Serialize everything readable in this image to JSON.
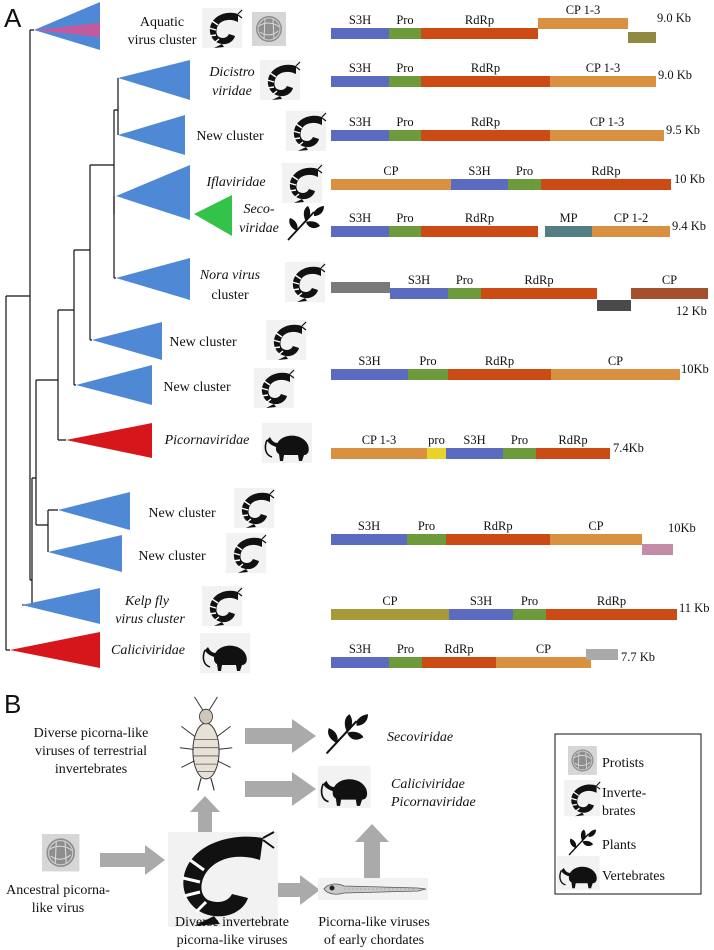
{
  "panels": {
    "a": "A",
    "b": "B"
  },
  "colors": {
    "S3H": "#5b6bbf",
    "Pro": "#6d9a3a",
    "RdRp": "#cc4a14",
    "CP": "#d9903f",
    "MP": "#557d86",
    "pro": "#e9d329",
    "grey": "#7a7a7a",
    "darkgrey": "#4a4a4a",
    "brown": "#a4502e",
    "olive": "#8f8a3f",
    "mauve": "#c38ca6",
    "lightgrey": "#a9a9a9",
    "olivecp": "#a69a3a",
    "invert": "#4f89d6",
    "vert": "#d6161a",
    "plant": "#33c24a",
    "protist": "#c45a9e"
  },
  "clades": [
    {
      "line1": "Aquatic",
      "line2": "virus cluster",
      "italic": false,
      "host": "invertebrate",
      "extra_host": "protist"
    },
    {
      "line1": "Dicistro",
      "line2": "viridae",
      "italic": true,
      "host": "invertebrate"
    },
    {
      "line1": "New cluster",
      "line2": "",
      "italic": false,
      "host": "invertebrate"
    },
    {
      "line1": "Iflaviridae",
      "line2": "",
      "italic": true,
      "host": "invertebrate"
    },
    {
      "line1": "Seco-",
      "line2": "viridae",
      "italic": true,
      "host": "plant"
    },
    {
      "line1": "Nora virus",
      "line2": "cluster",
      "italic": true,
      "host": "invertebrate"
    },
    {
      "line1": "New cluster",
      "line2": "",
      "italic": false,
      "host": "invertebrate"
    },
    {
      "line1": "New cluster",
      "line2": "",
      "italic": false,
      "host": "invertebrate"
    },
    {
      "line1": "Picornaviridae",
      "line2": "",
      "italic": true,
      "host": "vertebrate"
    },
    {
      "line1": "New cluster",
      "line2": "",
      "italic": false,
      "host": "invertebrate"
    },
    {
      "line1": "New cluster",
      "line2": "",
      "italic": false,
      "host": "invertebrate"
    },
    {
      "line1": "Kelp fly",
      "line2": "virus cluster",
      "italic": true,
      "host": "invertebrate"
    },
    {
      "line1": "Caliciviridae",
      "line2": "",
      "italic": true,
      "host": "vertebrate"
    }
  ],
  "genomes": [
    {
      "size": "9.0 Kb",
      "segments": [
        {
          "label": "S3H",
          "color": "S3H"
        },
        {
          "label": "Pro",
          "color": "Pro"
        },
        {
          "label": "RdRp",
          "color": "RdRp"
        },
        {
          "label": "CP 1-3",
          "color": "CP"
        },
        {
          "label": "",
          "color": "olive"
        }
      ]
    },
    {
      "size": "9.0 Kb",
      "segments": [
        {
          "label": "S3H",
          "color": "S3H"
        },
        {
          "label": "Pro",
          "color": "Pro"
        },
        {
          "label": "RdRp",
          "color": "RdRp"
        },
        {
          "label": "CP 1-3",
          "color": "CP"
        }
      ]
    },
    {
      "size": "9.5 Kb",
      "segments": [
        {
          "label": "S3H",
          "color": "S3H"
        },
        {
          "label": "Pro",
          "color": "Pro"
        },
        {
          "label": "RdRp",
          "color": "RdRp"
        },
        {
          "label": "CP 1-3",
          "color": "CP"
        }
      ]
    },
    {
      "size": "10 Kb",
      "segments": [
        {
          "label": "CP",
          "color": "CP"
        },
        {
          "label": "S3H",
          "color": "S3H"
        },
        {
          "label": "Pro",
          "color": "Pro"
        },
        {
          "label": "RdRp",
          "color": "RdRp"
        }
      ]
    },
    {
      "size": "9.4 Kb",
      "segments": [
        {
          "label": "S3H",
          "color": "S3H"
        },
        {
          "label": "Pro",
          "color": "Pro"
        },
        {
          "label": "RdRp",
          "color": "RdRp"
        },
        {
          "label": "MP",
          "color": "MP"
        },
        {
          "label": "CP 1-2",
          "color": "CP"
        }
      ]
    },
    {
      "size": "12 Kb",
      "segments": [
        {
          "label": "",
          "color": "grey"
        },
        {
          "label": "S3H",
          "color": "S3H"
        },
        {
          "label": "Pro",
          "color": "Pro"
        },
        {
          "label": "RdRp",
          "color": "RdRp"
        },
        {
          "label": "",
          "color": "darkgrey"
        },
        {
          "label": "CP",
          "color": "brown"
        }
      ]
    },
    {
      "size": "10Kb",
      "segments": [
        {
          "label": "S3H",
          "color": "S3H"
        },
        {
          "label": "Pro",
          "color": "Pro"
        },
        {
          "label": "RdRp",
          "color": "RdRp"
        },
        {
          "label": "CP",
          "color": "CP"
        }
      ]
    },
    {
      "size": "7.4Kb",
      "segments": [
        {
          "label": "CP 1-3",
          "color": "CP"
        },
        {
          "label": "pro",
          "color": "pro"
        },
        {
          "label": "S3H",
          "color": "S3H"
        },
        {
          "label": "Pro",
          "color": "Pro"
        },
        {
          "label": "RdRp",
          "color": "RdRp"
        }
      ]
    },
    {
      "size": "10Kb",
      "segments": [
        {
          "label": "S3H",
          "color": "S3H"
        },
        {
          "label": "Pro",
          "color": "Pro"
        },
        {
          "label": "RdRp",
          "color": "RdRp"
        },
        {
          "label": "CP",
          "color": "CP"
        },
        {
          "label": "",
          "color": "mauve"
        }
      ]
    },
    {
      "size": "11 Kb",
      "segments": [
        {
          "label": "CP",
          "color": "olivecp"
        },
        {
          "label": "S3H",
          "color": "S3H"
        },
        {
          "label": "Pro",
          "color": "Pro"
        },
        {
          "label": "RdRp",
          "color": "RdRp"
        }
      ]
    },
    {
      "size": "7.7 Kb",
      "segments": [
        {
          "label": "S3H",
          "color": "S3H"
        },
        {
          "label": "Pro",
          "color": "Pro"
        },
        {
          "label": "RdRp",
          "color": "RdRp"
        },
        {
          "label": "CP",
          "color": "CP"
        },
        {
          "label": "",
          "color": "lightgrey"
        }
      ]
    }
  ],
  "scheme": {
    "terrestrial": [
      "Diverse picorna-like",
      "viruses of terrestrial",
      "invertebrates"
    ],
    "ancestral": [
      "Ancestral picorna-",
      "like virus"
    ],
    "diverse_invert": [
      "Diverse invertebrate",
      "picorna-like viruses"
    ],
    "chordates": [
      "Picorna-like viruses",
      "of early chordates"
    ],
    "secoviridae": "Secoviridae",
    "calici": "Caliciviridae",
    "picorna": "Picornaviridae"
  },
  "legend": {
    "protists": "Protists",
    "invert": [
      "Inverte-",
      "brates"
    ],
    "plants": "Plants",
    "vertebrates": "Vertebrates"
  }
}
